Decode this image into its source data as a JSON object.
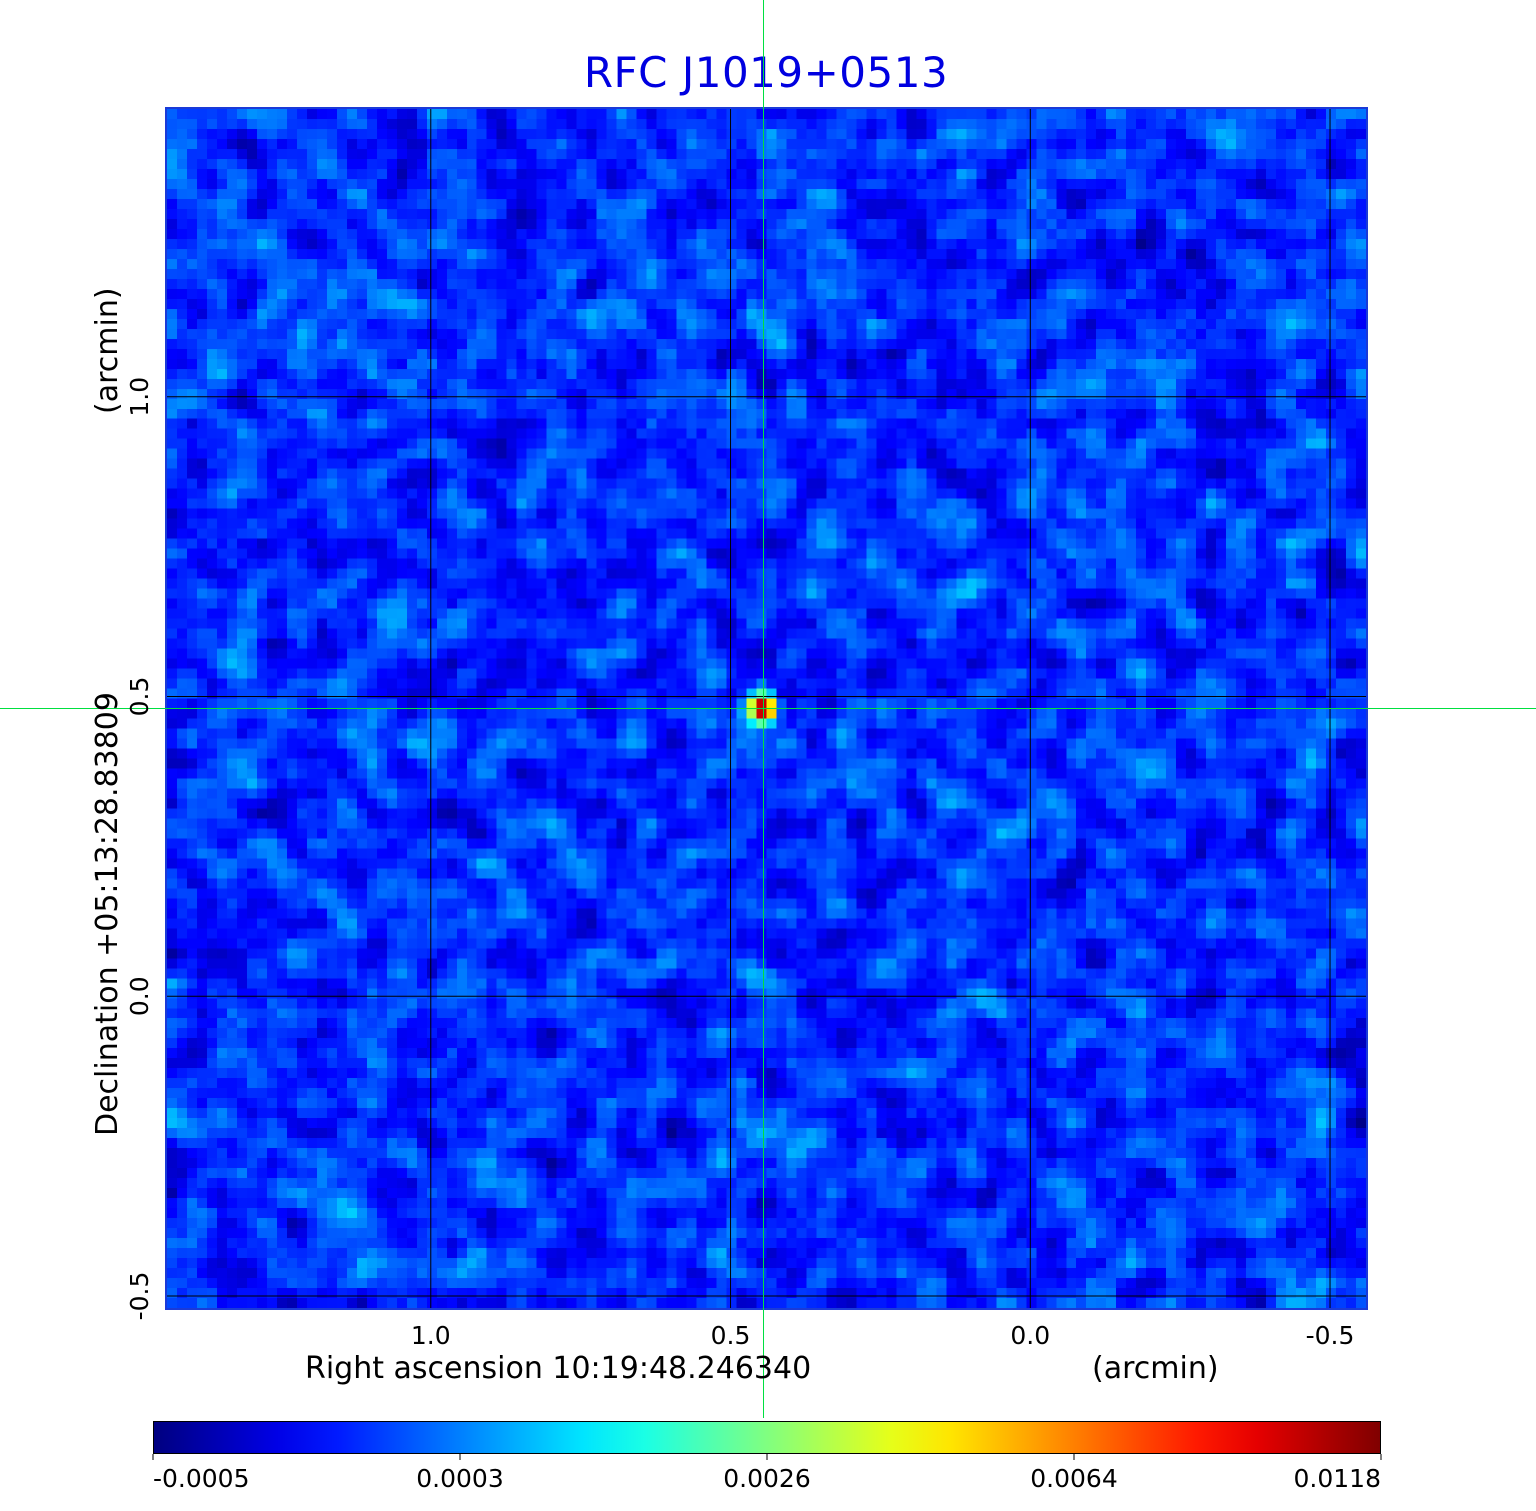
{
  "chart_data": {
    "type": "heatmap",
    "title": "RFC J1019+0513",
    "xlabel": "Right ascension  10:19:48.246340",
    "xunit": "(arcmin)",
    "ylabel": "Declination  +05:13:28.83809",
    "yunit": "(arcmin)",
    "xlim": [
      1.44,
      -0.56
    ],
    "ylim": [
      -0.52,
      1.48
    ],
    "grid": true,
    "x_ticks": [
      {
        "value": 1.0,
        "label": "1.0"
      },
      {
        "value": 0.5,
        "label": "0.5"
      },
      {
        "value": 0.0,
        "label": "0.0"
      },
      {
        "value": -0.5,
        "label": "-0.5"
      }
    ],
    "y_ticks": [
      {
        "value": -0.5,
        "label": "-0.5"
      },
      {
        "value": 0.0,
        "label": "0.0"
      },
      {
        "value": 0.5,
        "label": "0.5"
      },
      {
        "value": 1.0,
        "label": "1.0"
      }
    ],
    "crosshair": {
      "x": 0.445,
      "y": 0.48,
      "color": "#00e040"
    },
    "source_peak": {
      "x": 0.445,
      "y": 0.48,
      "value": 0.0118
    },
    "colorbar": {
      "colormap": "jet",
      "min": -0.0005,
      "max": 0.0118,
      "ticks": [
        "-0.0005",
        "0.0003",
        "0.0026",
        "0.0064",
        "0.0118"
      ]
    }
  },
  "colors": {
    "title": "#0000e0",
    "frame": "#1a3ad8",
    "grid": "#000000",
    "crosshair": "#00e040"
  }
}
